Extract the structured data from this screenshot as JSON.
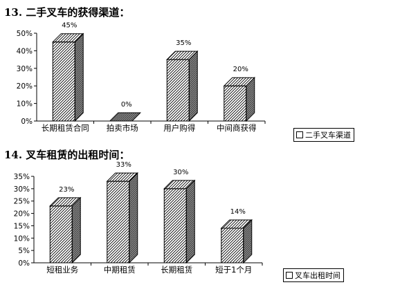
{
  "heading1": "13. 二手叉车的获得渠道：",
  "heading2": "14. 叉车租赁的出租时间：",
  "chart_data": [
    {
      "type": "bar",
      "categories": [
        "长期租赁合同",
        "拍卖市场",
        "用户购得",
        "中间商获得"
      ],
      "series": [
        {
          "name": "二手叉车渠道",
          "values": [
            45,
            0,
            35,
            20
          ]
        }
      ],
      "data_labels": [
        "45%",
        "0%",
        "35%",
        "20%"
      ],
      "yticks": [
        "0%",
        "10%",
        "20%",
        "30%",
        "40%",
        "50%"
      ],
      "ylim": [
        0,
        50
      ],
      "legend": "bottom-right",
      "grid": false,
      "colors": {
        "face": "#ffffff",
        "hatch": "#000000",
        "side": "#888888"
      }
    },
    {
      "type": "bar",
      "categories": [
        "短租业务",
        "中期租赁",
        "长期租赁",
        "短于1个月"
      ],
      "series": [
        {
          "name": "叉车出租时间",
          "values": [
            23,
            33,
            30,
            14
          ]
        }
      ],
      "data_labels": [
        "23%",
        "33%",
        "30%",
        "14%"
      ],
      "yticks": [
        "0%",
        "5%",
        "10%",
        "15%",
        "20%",
        "25%",
        "30%",
        "35%"
      ],
      "ylim": [
        0,
        35
      ],
      "legend": "bottom-right",
      "grid": false,
      "colors": {
        "face": "#ffffff",
        "hatch": "#000000",
        "side": "#888888"
      }
    }
  ]
}
